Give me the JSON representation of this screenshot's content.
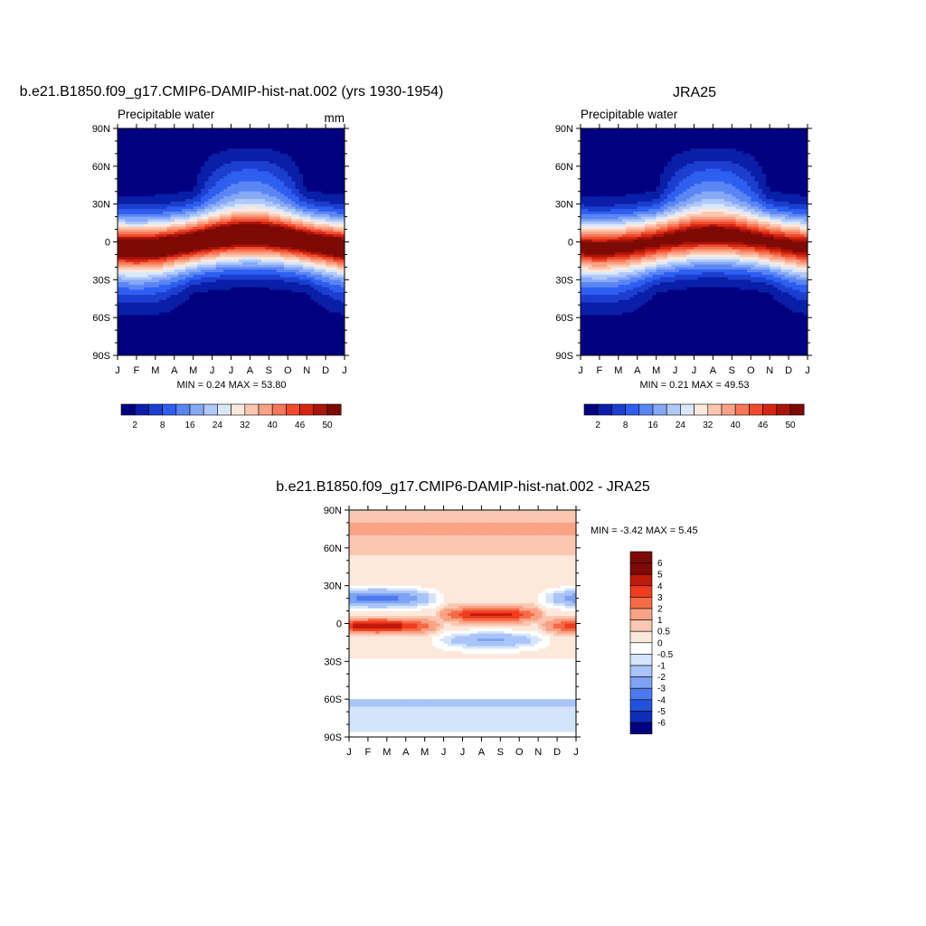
{
  "months": [
    "J",
    "F",
    "M",
    "A",
    "M",
    "J",
    "J",
    "A",
    "S",
    "O",
    "N",
    "D",
    "J"
  ],
  "lat_labels": [
    "90N",
    "60N",
    "30N",
    "0",
    "30S",
    "60S",
    "90S"
  ],
  "panels": [
    {
      "title": "b.e21.B1850.f09_g17.CMIP6-DAMIP-hist-nat.002 (yrs 1930-1954)",
      "left_label": "Precipitable water",
      "right_label": "mm",
      "stats": "MIN =   0.24 MAX =  53.80",
      "peak": 53.8,
      "peak_lag_months": 0
    },
    {
      "title": "JRA25",
      "left_label": "Precipitable water",
      "right_label": "",
      "stats": "MIN =   0.21 MAX =  49.53",
      "peak": 49.5,
      "peak_lag_months": 0
    },
    {
      "title": "b.e21.B1850.f09_g17.CMIP6-DAMIP-hist-nat.002 - JRA25",
      "left_label": "",
      "right_label": "",
      "stats": "MIN =  -3.42 MAX =   5.45"
    }
  ],
  "abs_colorbar": {
    "labels": [
      "2",
      "8",
      "16",
      "24",
      "32",
      "40",
      "46",
      "50"
    ],
    "colors": [
      "#000080",
      "#0a1fa8",
      "#1c3fd0",
      "#2e5ff0",
      "#5a86f5",
      "#86a8f7",
      "#b0c9fa",
      "#dbe8fc",
      "#fde9dc",
      "#fcc7b0",
      "#f9a285",
      "#f7775a",
      "#f04c2c",
      "#d62612",
      "#a9140a",
      "#7d0a04"
    ]
  },
  "diff_colorbar": {
    "labels": [
      "6",
      "5",
      "4",
      "3",
      "2",
      "1",
      "0.5",
      "0",
      "-0.5",
      "-1",
      "-2",
      "-3",
      "-4",
      "-5",
      "-6"
    ],
    "colors": [
      "#7d0a04",
      "#c01a0a",
      "#ef3d1d",
      "#f66a45",
      "#f9a285",
      "#fcc7b0",
      "#fde9dc",
      "#ffffff",
      "#d4e5fb",
      "#a9c4f8",
      "#7ea2f4",
      "#4c7aee",
      "#2252dc",
      "#0c2db8",
      "#000080"
    ]
  },
  "chart_data": [
    {
      "type": "heatmap",
      "title": "b.e21.B1850.f09_g17.CMIP6-DAMIP-hist-nat.002 (yrs 1930-1954)",
      "variable": "Precipitable water",
      "units": "mm",
      "x": [
        "J",
        "F",
        "M",
        "A",
        "M",
        "J",
        "J",
        "A",
        "S",
        "O",
        "N",
        "D",
        "J"
      ],
      "y": [
        "90N",
        "60N",
        "30N",
        "0",
        "30S",
        "60S",
        "90S"
      ],
      "min": 0.24,
      "max": 53.8,
      "levels": [
        2,
        5,
        8,
        12,
        16,
        20,
        24,
        28,
        32,
        36,
        40,
        43,
        46,
        48,
        50
      ]
    },
    {
      "type": "heatmap",
      "title": "JRA25",
      "variable": "Precipitable water",
      "x": [
        "J",
        "F",
        "M",
        "A",
        "M",
        "J",
        "J",
        "A",
        "S",
        "O",
        "N",
        "D",
        "J"
      ],
      "y": [
        "90N",
        "60N",
        "30N",
        "0",
        "30S",
        "60S",
        "90S"
      ],
      "min": 0.21,
      "max": 49.53,
      "levels": [
        2,
        5,
        8,
        12,
        16,
        20,
        24,
        28,
        32,
        36,
        40,
        43,
        46,
        48,
        50
      ]
    },
    {
      "type": "heatmap",
      "title": "b.e21.B1850.f09_g17.CMIP6-DAMIP-hist-nat.002 - JRA25",
      "x": [
        "J",
        "F",
        "M",
        "A",
        "M",
        "J",
        "J",
        "A",
        "S",
        "O",
        "N",
        "D",
        "J"
      ],
      "y": [
        "90N",
        "60N",
        "30N",
        "0",
        "30S",
        "60S",
        "90S"
      ],
      "min": -3.42,
      "max": 5.45,
      "levels": [
        -6,
        -5,
        -4,
        -3,
        -2,
        -1,
        -0.5,
        0,
        0.5,
        1,
        2,
        3,
        4,
        5,
        6
      ]
    }
  ]
}
